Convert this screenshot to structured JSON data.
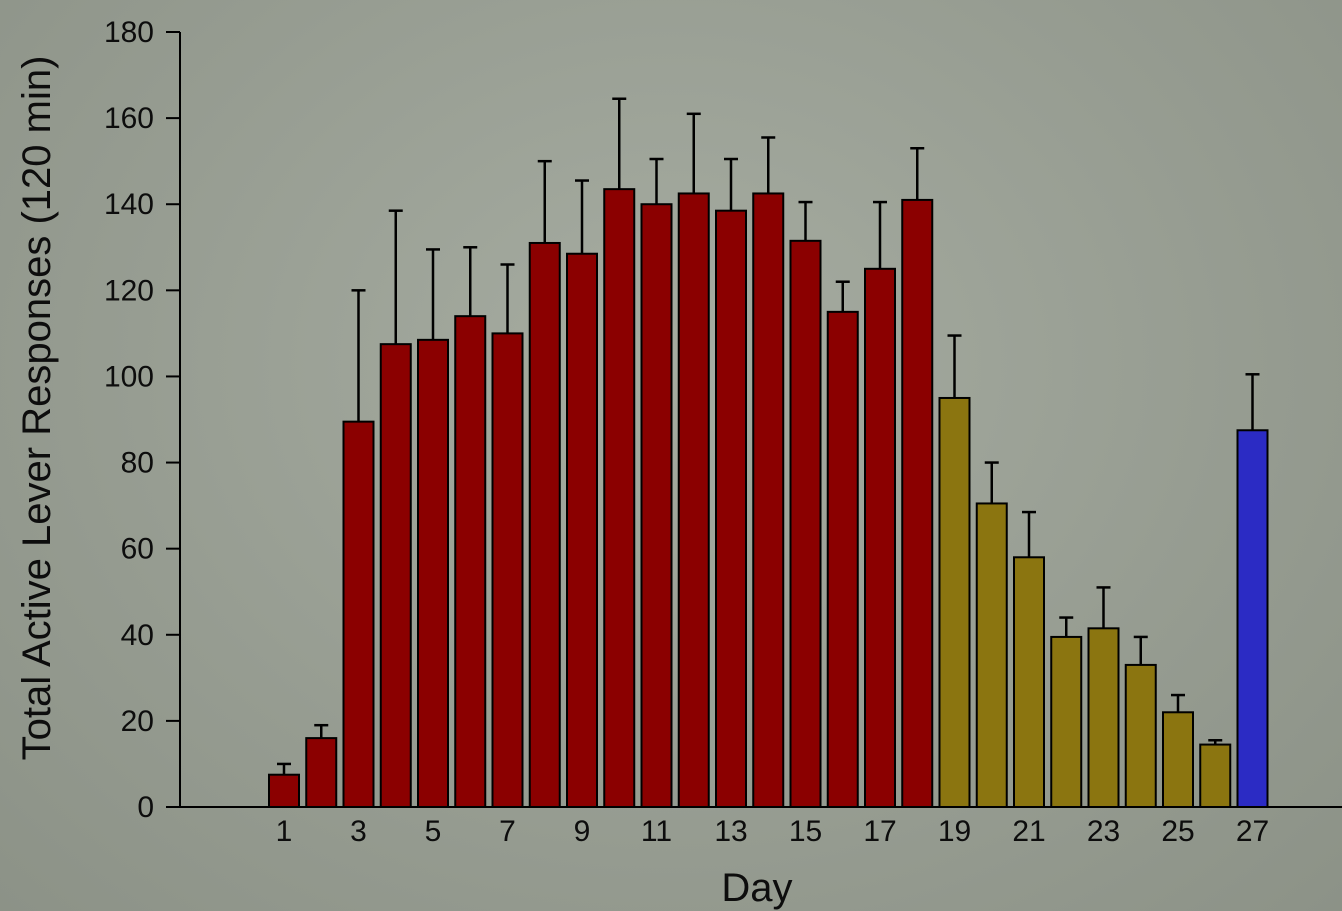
{
  "chart_data": {
    "type": "bar",
    "xlabel": "Day",
    "ylabel": "Total Active Lever Responses (120 min)",
    "ylim": [
      0,
      180
    ],
    "yticks": [
      0,
      20,
      40,
      60,
      80,
      100,
      120,
      140,
      160,
      180
    ],
    "xticks": [
      1,
      3,
      5,
      7,
      9,
      11,
      13,
      15,
      17,
      19,
      21,
      23,
      25,
      27
    ],
    "grid": false,
    "legend": "none",
    "colors": {
      "days_1_18": "#8b0000",
      "days_19_26": "#8b7510",
      "day_27": "#2b2bc4",
      "axis": "#000000"
    },
    "days": [
      1,
      2,
      3,
      4,
      5,
      6,
      7,
      8,
      9,
      10,
      11,
      12,
      13,
      14,
      15,
      16,
      17,
      18,
      19,
      20,
      21,
      22,
      23,
      24,
      25,
      26,
      27
    ],
    "values": [
      7.5,
      16,
      89.5,
      107.5,
      108.5,
      114,
      110,
      131,
      128.5,
      143.5,
      140,
      142.5,
      138.5,
      142.5,
      131.5,
      115,
      125,
      141,
      95,
      70.5,
      58,
      39.5,
      41.5,
      33,
      22,
      14.5,
      87.5
    ],
    "errors": [
      2.5,
      3,
      30.5,
      31,
      21,
      16,
      16,
      19,
      17,
      21,
      10.5,
      18.5,
      12,
      13,
      9,
      7,
      15.5,
      12,
      14.5,
      9.5,
      10.5,
      4.5,
      9.5,
      6.5,
      4,
      1,
      13
    ],
    "bar_colors": [
      "days_1_18",
      "days_1_18",
      "days_1_18",
      "days_1_18",
      "days_1_18",
      "days_1_18",
      "days_1_18",
      "days_1_18",
      "days_1_18",
      "days_1_18",
      "days_1_18",
      "days_1_18",
      "days_1_18",
      "days_1_18",
      "days_1_18",
      "days_1_18",
      "days_1_18",
      "days_1_18",
      "days_19_26",
      "days_19_26",
      "days_19_26",
      "days_19_26",
      "days_19_26",
      "days_19_26",
      "days_19_26",
      "days_19_26",
      "day_27"
    ]
  }
}
